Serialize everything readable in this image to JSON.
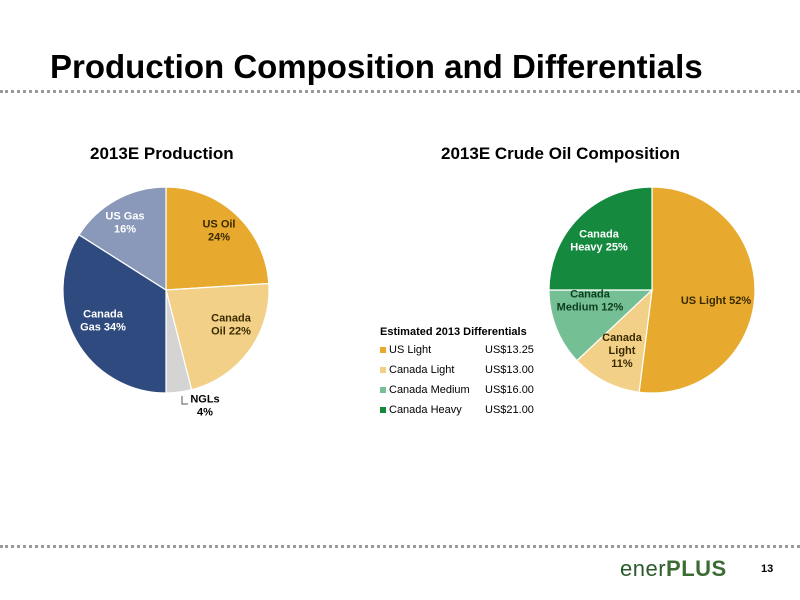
{
  "slide": {
    "title": "Production Composition and Differentials",
    "page_number": "13",
    "logo": {
      "part1": "ener",
      "part2": "PLUS",
      "color": "#2b5a2b"
    }
  },
  "chart_data": [
    {
      "type": "pie",
      "title": "2013E Production",
      "slices": [
        {
          "name": "US Oil",
          "label": [
            "US Oil",
            "24%"
          ],
          "value": 24,
          "color": "#E8AA2E"
        },
        {
          "name": "Canada Oil",
          "label": [
            "Canada",
            "Oil  22%"
          ],
          "value": 22,
          "color": "#F2D088"
        },
        {
          "name": "NGLs",
          "label": [
            "NGLs",
            "4%"
          ],
          "value": 4,
          "color": "#D4D4D4"
        },
        {
          "name": "Canada Gas",
          "label": [
            "Canada",
            "Gas 34%"
          ],
          "value": 34,
          "color": "#2F4A7E"
        },
        {
          "name": "US Gas",
          "label": [
            "US Gas",
            "16%"
          ],
          "value": 16,
          "color": "#8A99B9"
        }
      ]
    },
    {
      "type": "pie",
      "title": "2013E Crude Oil Composition",
      "slices": [
        {
          "name": "US Light",
          "label": [
            "US Light 52%"
          ],
          "value": 52,
          "color": "#E8AA2E"
        },
        {
          "name": "Canada Light",
          "label": [
            "Canada",
            "Light",
            "11%"
          ],
          "value": 11,
          "color": "#F2D088"
        },
        {
          "name": "Canada Medium",
          "label": [
            "Canada",
            "Medium 12%"
          ],
          "value": 12,
          "color": "#74BF93"
        },
        {
          "name": "Canada Heavy",
          "label": [
            "Canada",
            "Heavy 25%"
          ],
          "value": 25,
          "color": "#158A3F"
        }
      ],
      "legend": {
        "title": "Estimated 2013 Differentials",
        "items": [
          {
            "name": "US Light",
            "value": "US$13.25",
            "color": "#E8AA2E"
          },
          {
            "name": "Canada Light",
            "value": "US$13.00",
            "color": "#F2D088"
          },
          {
            "name": "Canada Medium",
            "value": "US$16.00",
            "color": "#74BF93"
          },
          {
            "name": "Canada Heavy",
            "value": "US$21.00",
            "color": "#158A3F"
          }
        ]
      }
    }
  ]
}
